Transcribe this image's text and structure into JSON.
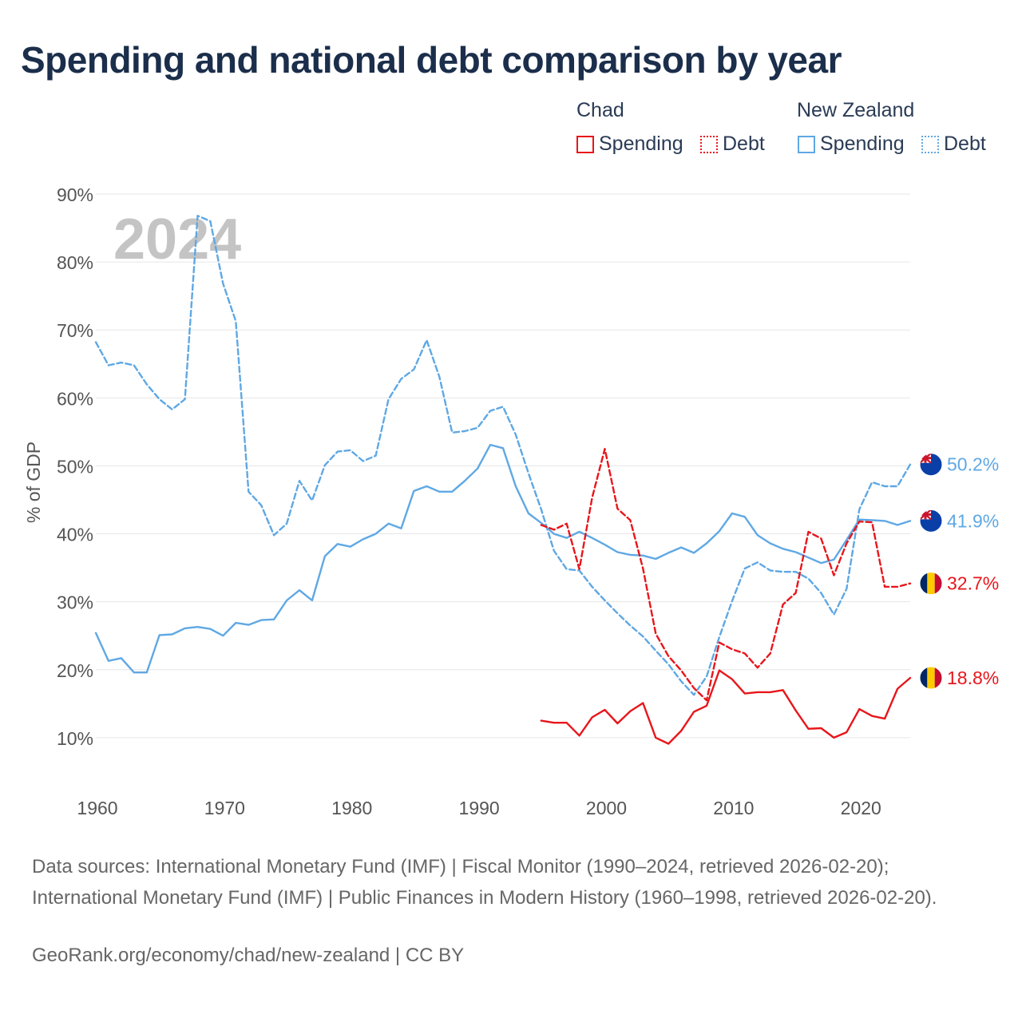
{
  "title": "Spending and national debt comparison by year",
  "legend": {
    "groups": [
      {
        "name": "Chad",
        "items": [
          {
            "label": "Spending"
          },
          {
            "label": "Debt"
          }
        ]
      },
      {
        "name": "New Zealand",
        "items": [
          {
            "label": "Spending"
          },
          {
            "label": "Debt"
          }
        ]
      }
    ]
  },
  "colors": {
    "chad": "#e8161b",
    "nz": "#5fa8e4",
    "grid": "#e6e6e6",
    "axis_text": "#555555",
    "year_watermark": "#c4c4c4"
  },
  "chart_data": {
    "type": "line",
    "ylabel": "% of GDP",
    "xlabel": "",
    "year_label": "2024",
    "xlim": [
      1960,
      2024
    ],
    "ylim": [
      0,
      90
    ],
    "x_ticks": [
      1960,
      1970,
      1980,
      1990,
      2000,
      2010,
      2020
    ],
    "x_tick_labels": [
      "1960",
      "1970",
      "1980",
      "1990",
      "2000",
      "2010",
      "2020"
    ],
    "y_ticks": [
      10,
      20,
      30,
      40,
      50,
      60,
      70,
      80,
      90
    ],
    "y_tick_labels": [
      "10%",
      "20%",
      "30%",
      "40%",
      "50%",
      "60%",
      "70%",
      "80%",
      "90%"
    ],
    "series": [
      {
        "name": "New Zealand Debt",
        "country": "New Zealand",
        "kind": "Debt",
        "style": "dashed",
        "color": "#5fa8e4",
        "x": [
          1960,
          1961,
          1962,
          1963,
          1964,
          1965,
          1966,
          1967,
          1968,
          1969,
          1970,
          1971,
          1972,
          1973,
          1974,
          1975,
          1976,
          1977,
          1978,
          1979,
          1980,
          1981,
          1982,
          1983,
          1984,
          1985,
          1986,
          1987,
          1988,
          1989,
          1990,
          1991,
          1992,
          1993,
          1994,
          1995,
          1996,
          1997,
          1998,
          1999,
          2000,
          2001,
          2002,
          2003,
          2004,
          2005,
          2006,
          2007,
          2008,
          2009,
          2010,
          2011,
          2012,
          2013,
          2014,
          2015,
          2016,
          2017,
          2018,
          2019,
          2020,
          2021,
          2022,
          2023,
          2024
        ],
        "values": [
          68.2,
          64.8,
          65.2,
          64.8,
          62.0,
          59.8,
          58.3,
          59.8,
          86.8,
          86.0,
          76.8,
          71.3,
          46.2,
          44.2,
          39.8,
          41.5,
          47.8,
          44.9,
          50.1,
          52.1,
          52.3,
          50.7,
          51.5,
          59.8,
          62.8,
          64.2,
          68.5,
          63.1,
          54.9,
          55.1,
          55.6,
          58.1,
          58.7,
          54.6,
          48.9,
          43.6,
          37.5,
          34.8,
          34.6,
          32.2,
          30.2,
          28.3,
          26.5,
          24.9,
          22.8,
          20.8,
          18.3,
          16.3,
          19.0,
          24.8,
          30.1,
          34.9,
          35.8,
          34.6,
          34.4,
          34.4,
          33.4,
          31.3,
          28.1,
          31.9,
          43.6,
          47.6,
          47.0,
          47.0,
          50.2
        ],
        "end_label": "50.2%"
      },
      {
        "name": "New Zealand Spending",
        "country": "New Zealand",
        "kind": "Spending",
        "style": "solid",
        "color": "#5fa8e4",
        "x": [
          1960,
          1961,
          1962,
          1963,
          1964,
          1965,
          1966,
          1967,
          1968,
          1969,
          1970,
          1971,
          1972,
          1973,
          1974,
          1975,
          1976,
          1977,
          1978,
          1979,
          1980,
          1981,
          1982,
          1983,
          1984,
          1985,
          1986,
          1987,
          1988,
          1989,
          1990,
          1991,
          1992,
          1993,
          1994,
          1995,
          1996,
          1997,
          1998,
          1999,
          2000,
          2001,
          2002,
          2003,
          2004,
          2005,
          2006,
          2007,
          2008,
          2009,
          2010,
          2011,
          2012,
          2013,
          2014,
          2015,
          2016,
          2017,
          2018,
          2019,
          2020,
          2021,
          2022,
          2023,
          2024
        ],
        "values": [
          25.4,
          21.3,
          21.7,
          19.6,
          19.6,
          25.1,
          25.2,
          26.1,
          26.3,
          26.0,
          25.0,
          26.9,
          26.6,
          27.3,
          27.4,
          30.2,
          31.7,
          30.2,
          36.7,
          38.5,
          38.1,
          39.2,
          40.0,
          41.5,
          40.8,
          46.3,
          47.0,
          46.2,
          46.2,
          47.8,
          49.6,
          53.1,
          52.6,
          47.0,
          43.0,
          41.6,
          40.0,
          39.4,
          40.3,
          39.4,
          38.4,
          37.3,
          36.9,
          36.8,
          36.3,
          37.2,
          38.0,
          37.2,
          38.6,
          40.4,
          43.0,
          42.5,
          39.8,
          38.6,
          37.8,
          37.3,
          36.5,
          35.7,
          36.2,
          39.1,
          42.1,
          42.0,
          41.9,
          41.3,
          41.9
        ],
        "end_label": "41.9%"
      },
      {
        "name": "Chad Debt",
        "country": "Chad",
        "kind": "Debt",
        "style": "dashed",
        "color": "#e8161b",
        "x": [
          1995,
          1996,
          1997,
          1998,
          1999,
          2000,
          2001,
          2002,
          2003,
          2004,
          2005,
          2006,
          2007,
          2008,
          2009,
          2010,
          2011,
          2012,
          2013,
          2014,
          2015,
          2016,
          2017,
          2018,
          2019,
          2020,
          2021,
          2022,
          2023,
          2024
        ],
        "values": [
          41.3,
          40.6,
          41.5,
          34.8,
          45.3,
          52.5,
          43.7,
          42.0,
          34.9,
          25.3,
          22.0,
          19.9,
          17.3,
          15.5,
          24.0,
          23.0,
          22.4,
          20.3,
          22.4,
          29.6,
          31.3,
          40.3,
          39.3,
          33.9,
          38.6,
          41.8,
          41.7,
          32.2,
          32.2,
          32.7
        ],
        "end_label": "32.7%"
      },
      {
        "name": "Chad Spending",
        "country": "Chad",
        "kind": "Spending",
        "style": "solid",
        "color": "#e8161b",
        "x": [
          1995,
          1996,
          1997,
          1998,
          1999,
          2000,
          2001,
          2002,
          2003,
          2004,
          2005,
          2006,
          2007,
          2008,
          2009,
          2010,
          2011,
          2012,
          2013,
          2014,
          2015,
          2016,
          2017,
          2018,
          2019,
          2020,
          2021,
          2022,
          2023,
          2024
        ],
        "values": [
          12.5,
          12.2,
          12.2,
          10.3,
          13.0,
          14.1,
          12.1,
          13.9,
          15.1,
          10.0,
          9.1,
          11.0,
          13.8,
          14.7,
          19.9,
          18.6,
          16.5,
          16.7,
          16.7,
          17.0,
          14.0,
          11.3,
          11.4,
          10.0,
          10.8,
          14.2,
          13.2,
          12.8,
          17.2,
          18.8
        ],
        "end_label": "18.8%"
      }
    ]
  },
  "sources": "Data sources: International Monetary Fund (IMF) | Fiscal Monitor (1990–2024, retrieved 2026-02-20); International Monetary Fund (IMF) | Public Finances in Modern History (1960–1998, retrieved 2026-02-20).",
  "credit": "GeoRank.org/economy/chad/new-zealand | CC BY"
}
